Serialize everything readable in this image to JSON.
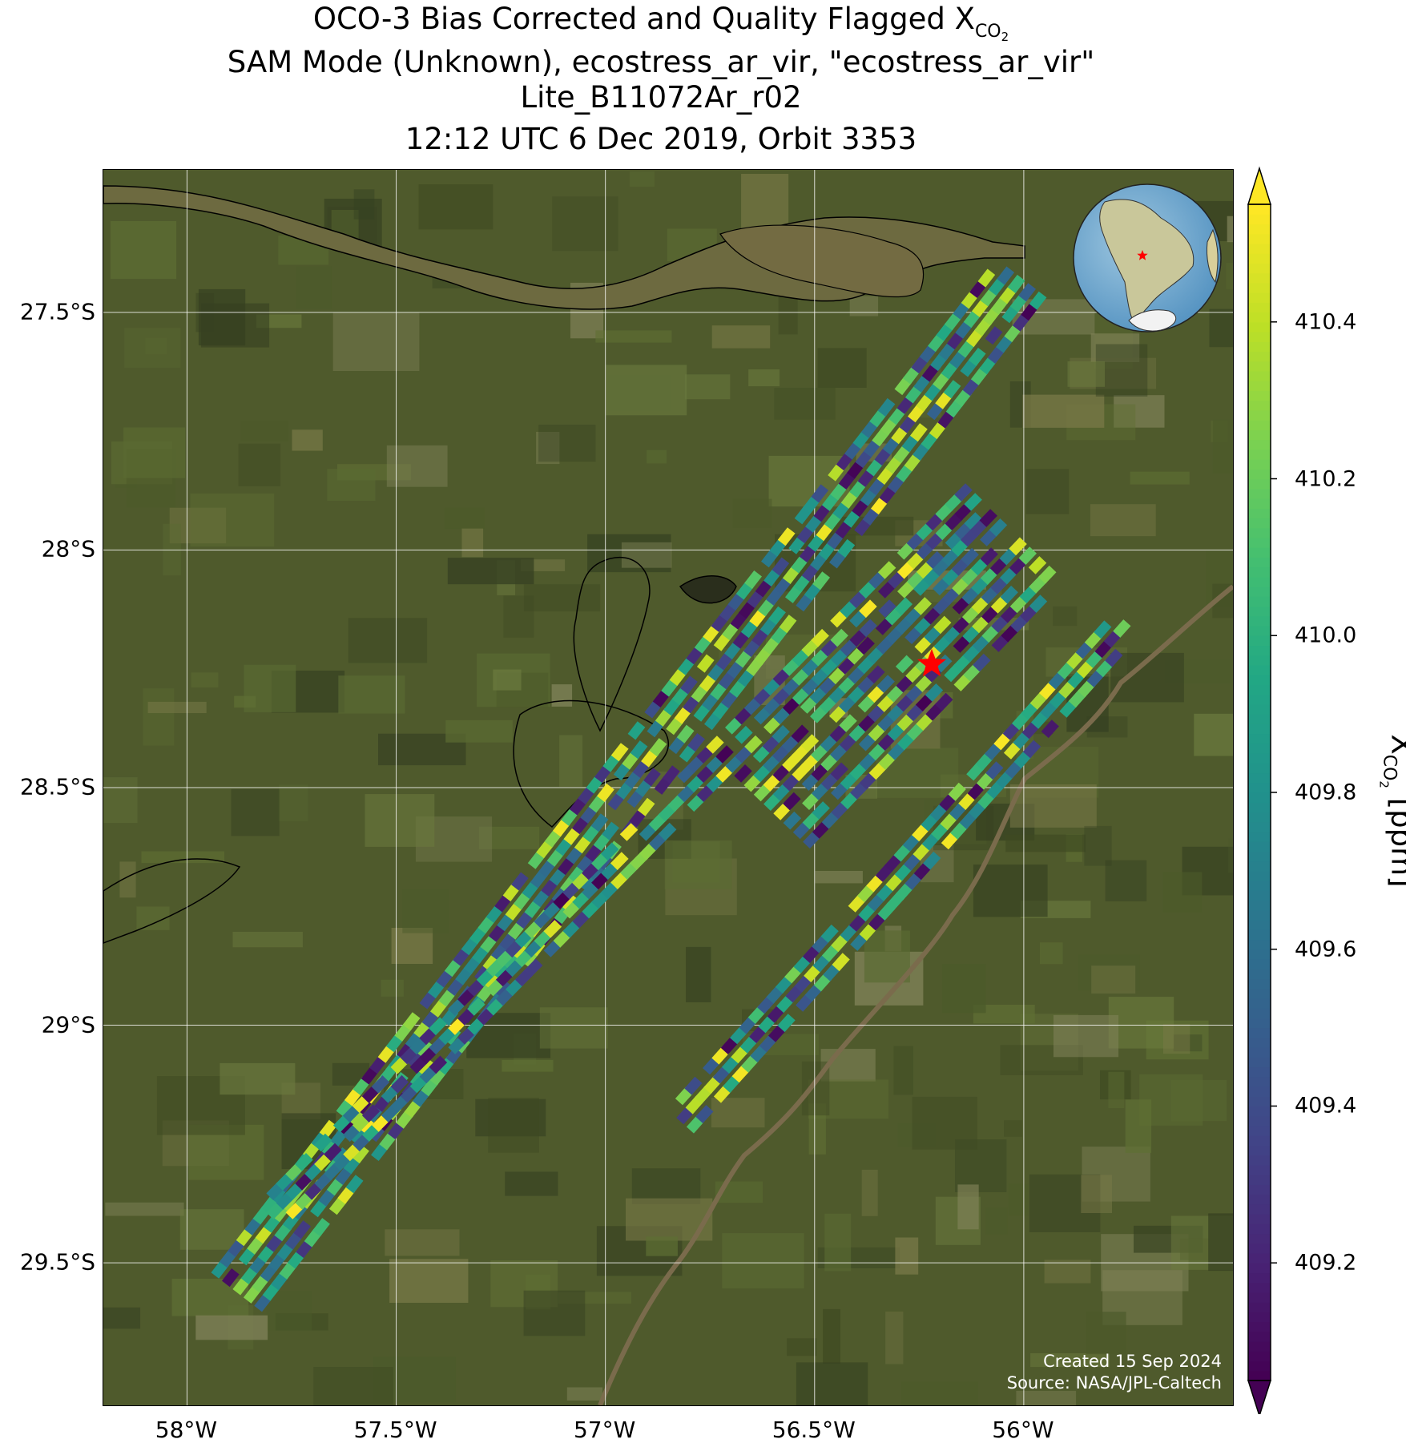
{
  "title": {
    "line1_prefix": "OCO-3 Bias Corrected and Quality Flagged X",
    "line1_sub": "CO",
    "line1_subsub": "2",
    "line2": "SAM Mode (Unknown), ecostress_ar_vir, \"ecostress_ar_vir\"",
    "line3": "Lite_B11072Ar_r02",
    "line4": "12:12 UTC 6 Dec 2019, Orbit 3353"
  },
  "map": {
    "lon_range": [
      -58.2,
      -55.5
    ],
    "lat_range": [
      -29.8,
      -27.2
    ],
    "xticks": [
      {
        "lon": -58.0,
        "label": "58°W"
      },
      {
        "lon": -57.5,
        "label": "57.5°W"
      },
      {
        "lon": -57.0,
        "label": "57°W"
      },
      {
        "lon": -56.5,
        "label": "56.5°W"
      },
      {
        "lon": -56.0,
        "label": "56°W"
      }
    ],
    "yticks": [
      {
        "lat": -27.5,
        "label": "27.5°S"
      },
      {
        "lat": -28.0,
        "label": "28°S"
      },
      {
        "lat": -28.5,
        "label": "28.5°S"
      },
      {
        "lat": -29.0,
        "label": "29°S"
      },
      {
        "lat": -29.5,
        "label": "29.5°S"
      }
    ],
    "target_marker": {
      "lon": -56.22,
      "lat": -28.24,
      "color": "#ff0000"
    },
    "basemap": "satellite imagery",
    "colors": {
      "vegetation": "#4f5a2c",
      "river": "#6b6a3e",
      "grid": "#ffffff"
    }
  },
  "chart_data": {
    "type": "heatmap",
    "variable": "XCO2",
    "unit": "ppm",
    "colormap": "viridis",
    "clim": [
      409.05,
      410.55
    ],
    "swaths": [
      {
        "start": {
          "lon": -57.88,
          "lat": -29.56
        },
        "end": {
          "lon": -56.0,
          "lat": -27.42
        },
        "width_deg": 0.15
      },
      {
        "start": {
          "lon": -57.8,
          "lat": -29.4
        },
        "end": {
          "lon": -56.1,
          "lat": -27.88
        },
        "width_deg": 0.09
      },
      {
        "start": {
          "lon": -56.6,
          "lat": -28.55
        },
        "end": {
          "lon": -56.0,
          "lat": -28.0
        },
        "width_deg": 0.26
      },
      {
        "start": {
          "lon": -56.82,
          "lat": -29.2
        },
        "end": {
          "lon": -55.75,
          "lat": -28.15
        },
        "width_deg": 0.11
      }
    ]
  },
  "colorbar": {
    "label_prefix": "X",
    "label_sub": "CO",
    "label_subsub": "2",
    "label_suffix": " [ppm]",
    "ticks": [
      {
        "value": 409.2,
        "label": "409.2"
      },
      {
        "value": 409.4,
        "label": "409.4"
      },
      {
        "value": 409.6,
        "label": "409.6"
      },
      {
        "value": 409.8,
        "label": "409.8"
      },
      {
        "value": 410.0,
        "label": "410.0"
      },
      {
        "value": 410.2,
        "label": "410.2"
      },
      {
        "value": 410.4,
        "label": "410.4"
      }
    ],
    "extend": "both"
  },
  "credit": {
    "line1": "Created 15 Sep 2024",
    "line2": "Source: NASA/JPL-Caltech"
  }
}
